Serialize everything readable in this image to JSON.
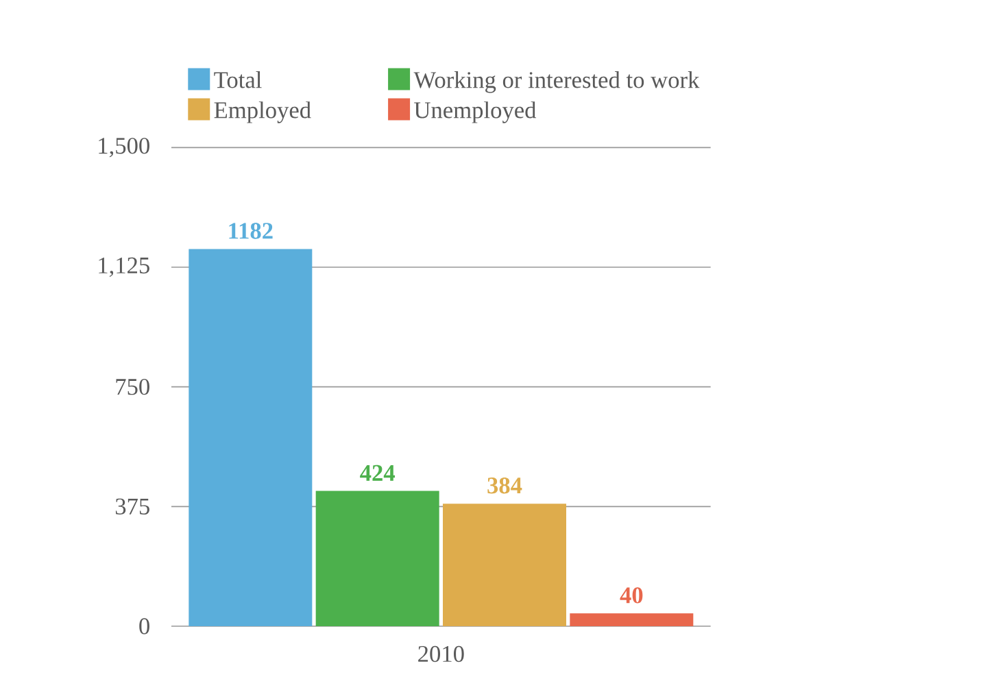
{
  "chart_data": {
    "type": "bar",
    "categories": [
      "2010"
    ],
    "series": [
      {
        "name": "Total",
        "color": "#5aaedb",
        "values": [
          1182
        ]
      },
      {
        "name": "Working or interested to work",
        "color": "#4cb04c",
        "values": [
          424
        ]
      },
      {
        "name": "Employed",
        "color": "#deac4c",
        "values": [
          384
        ]
      },
      {
        "name": "Unemployed",
        "color": "#e8674c",
        "values": [
          40
        ]
      }
    ],
    "ylim": [
      0,
      1500
    ],
    "yticks": [
      0,
      {
        "value": 375,
        "label": "375"
      },
      {
        "value": 750,
        "label": "750"
      },
      {
        "value": 1125,
        "label": "1,125"
      },
      {
        "value": 1500,
        "label": "1,500"
      }
    ],
    "grid": "y",
    "legend": "top",
    "data_labels": true
  }
}
